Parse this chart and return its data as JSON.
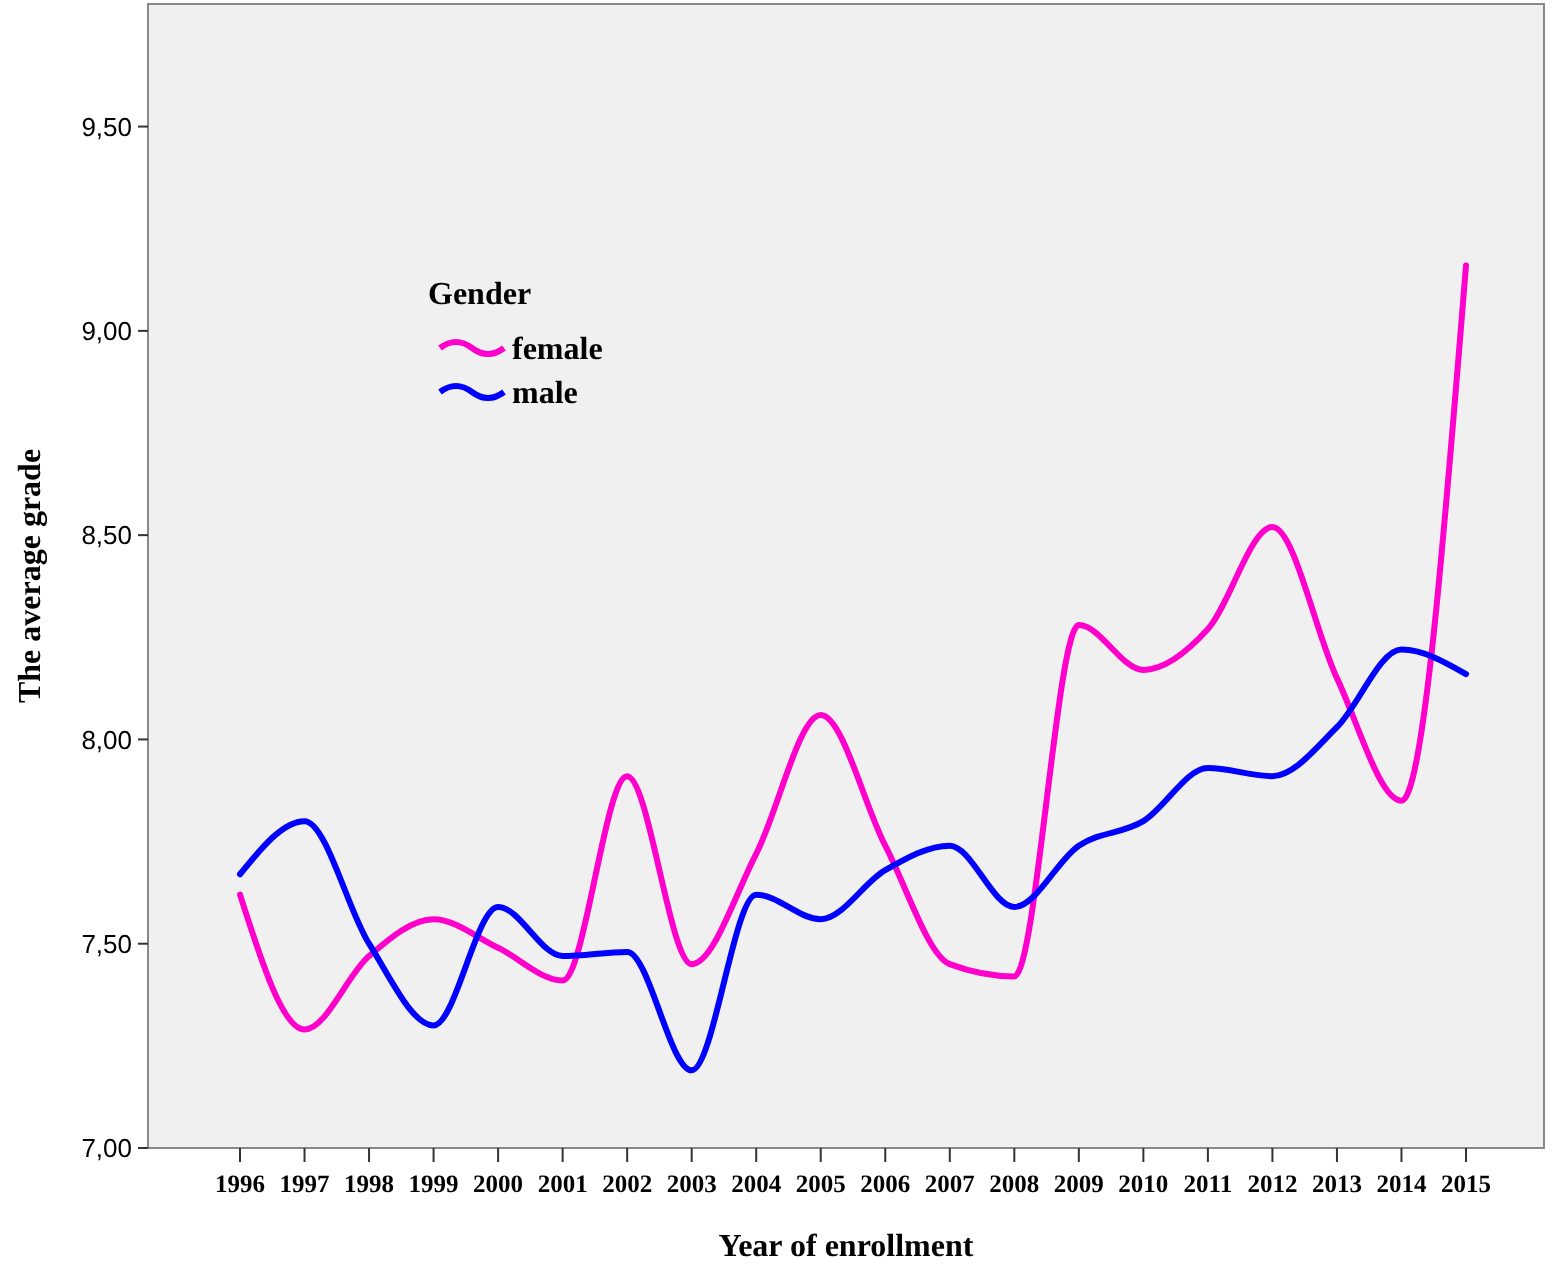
{
  "chart_data": {
    "type": "line",
    "xlabel": "Year of enrollment",
    "ylabel": "The average grade",
    "legend_title": "Gender",
    "legend": "top left",
    "grid": false,
    "marker": "none",
    "line_style": "solid",
    "categories": [
      "1996",
      "1997",
      "1998",
      "1999",
      "2000",
      "2001",
      "2002",
      "2003",
      "2004",
      "2005",
      "2006",
      "2007",
      "2008",
      "2009",
      "2010",
      "2011",
      "2012",
      "2013",
      "2014",
      "2015"
    ],
    "ylim": [
      7,
      9.8
    ],
    "yticks": [
      {
        "value": 7,
        "label": "7,00"
      },
      {
        "value": 7.5,
        "label": "7,50"
      },
      {
        "value": 8,
        "label": "8,00"
      },
      {
        "value": 8.5,
        "label": "8,50"
      },
      {
        "value": 9,
        "label": "9,00"
      },
      {
        "value": 9.5,
        "label": "9,50"
      }
    ],
    "series": [
      {
        "name": "female",
        "color": "#ff00cc",
        "values": [
          7.62,
          7.29,
          7.47,
          7.56,
          7.49,
          7.41,
          7.91,
          7.45,
          7.72,
          8.06,
          7.74,
          7.45,
          7.42,
          8.28,
          8.17,
          8.27,
          8.52,
          8.15,
          7.85,
          9.16
        ]
      },
      {
        "name": "male",
        "color": "#0000ff",
        "values": [
          7.67,
          7.8,
          7.5,
          7.3,
          7.59,
          7.47,
          7.48,
          7.19,
          7.62,
          7.56,
          7.68,
          7.74,
          7.59,
          7.74,
          7.8,
          7.93,
          7.91,
          8.03,
          8.22,
          8.16
        ]
      }
    ]
  }
}
